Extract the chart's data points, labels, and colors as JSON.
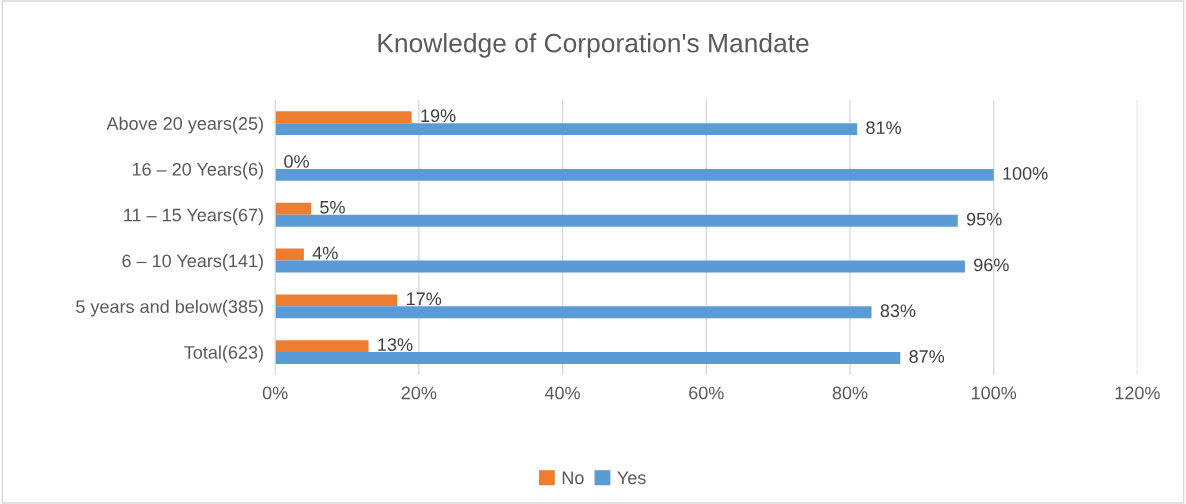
{
  "chart_data": {
    "type": "bar",
    "orientation": "horizontal",
    "title": "Knowledge of Corporation's Mandate",
    "categories": [
      "Above 20 years(25)",
      "16 – 20 Years(6)",
      "11 – 15 Years(67)",
      "6 – 10 Years(141)",
      "5 years and below(385)",
      "Total(623)"
    ],
    "series": [
      {
        "name": "No",
        "color": "#ed7d31",
        "values": [
          19,
          0,
          5,
          4,
          17,
          13
        ],
        "value_labels": [
          "19%",
          "0%",
          "5%",
          "4%",
          "17%",
          "13%"
        ]
      },
      {
        "name": "Yes",
        "color": "#5b9bd5",
        "values": [
          81,
          100,
          95,
          96,
          83,
          87
        ],
        "value_labels": [
          "81%",
          "100%",
          "95%",
          "96%",
          "83%",
          "87%"
        ]
      }
    ],
    "xlim": [
      0,
      120
    ],
    "xticks": [
      {
        "value": 0,
        "label": "0%"
      },
      {
        "value": 20,
        "label": "20%"
      },
      {
        "value": 40,
        "label": "40%"
      },
      {
        "value": 60,
        "label": "60%"
      },
      {
        "value": 80,
        "label": "80%"
      },
      {
        "value": 100,
        "label": "100%"
      },
      {
        "value": 120,
        "label": "120%"
      }
    ],
    "grid": "x",
    "legend": "bottom"
  }
}
